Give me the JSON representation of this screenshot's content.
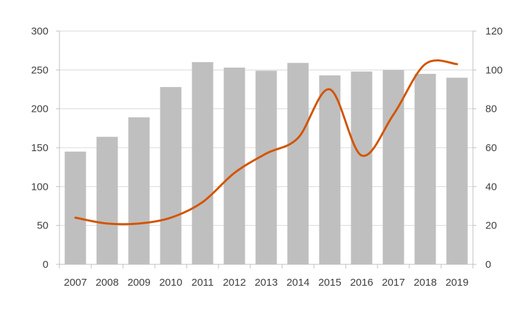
{
  "chart_data": {
    "type": "bar",
    "title": "",
    "xlabel": "",
    "ylabel": "",
    "categories": [
      "2007",
      "2008",
      "2009",
      "2010",
      "2011",
      "2012",
      "2013",
      "2014",
      "2015",
      "2016",
      "2017",
      "2018",
      "2019"
    ],
    "series": [
      {
        "type": "bar",
        "axis": "left",
        "color": "#bfbfbf",
        "values": [
          145,
          164,
          189,
          228,
          260,
          253,
          249,
          259,
          243,
          248,
          250,
          245,
          240
        ]
      },
      {
        "type": "line",
        "axis": "right",
        "smooth": true,
        "color": "#d35400",
        "values": [
          24,
          21,
          21,
          24,
          32,
          47,
          57,
          65,
          90,
          56,
          77,
          103,
          103
        ]
      }
    ],
    "y_left": {
      "min": 0,
      "max": 300,
      "ticks": [
        0,
        50,
        100,
        150,
        200,
        250,
        300
      ]
    },
    "y_right": {
      "min": 0,
      "max": 120,
      "ticks": [
        0,
        20,
        40,
        60,
        80,
        100,
        120
      ]
    },
    "grid": true,
    "legend": "none"
  }
}
